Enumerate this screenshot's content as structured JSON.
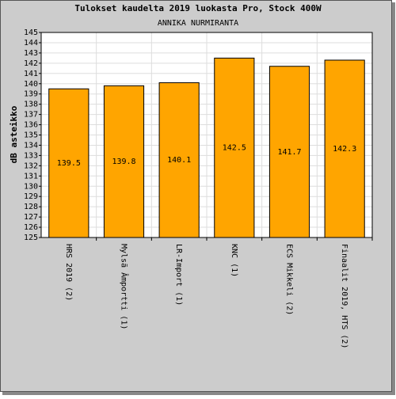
{
  "chart_data": {
    "type": "bar",
    "title": "Tulokset kaudelta 2019 luokasta Pro, Stock 400W",
    "subtitle": "ANNIKA NURMIRANTA",
    "y_label": "dB asteikko",
    "categories": [
      "HRS 2019 (2)",
      "Mylsã Âmportti (1)",
      "LR-Import (1)",
      "KNC (1)",
      "ECS Mikkeli (2)",
      "Finaalit 2019, HTS (2)"
    ],
    "values": [
      139.5,
      139.8,
      140.1,
      142.5,
      141.7,
      142.3
    ],
    "color": "#ffa500",
    "ylim": [
      125,
      145
    ],
    "yticks": [
      125,
      126,
      127,
      128,
      129,
      130,
      131,
      132,
      133,
      134,
      135,
      136,
      137,
      138,
      139,
      140,
      141,
      142,
      143,
      144,
      145
    ],
    "grid": true
  }
}
